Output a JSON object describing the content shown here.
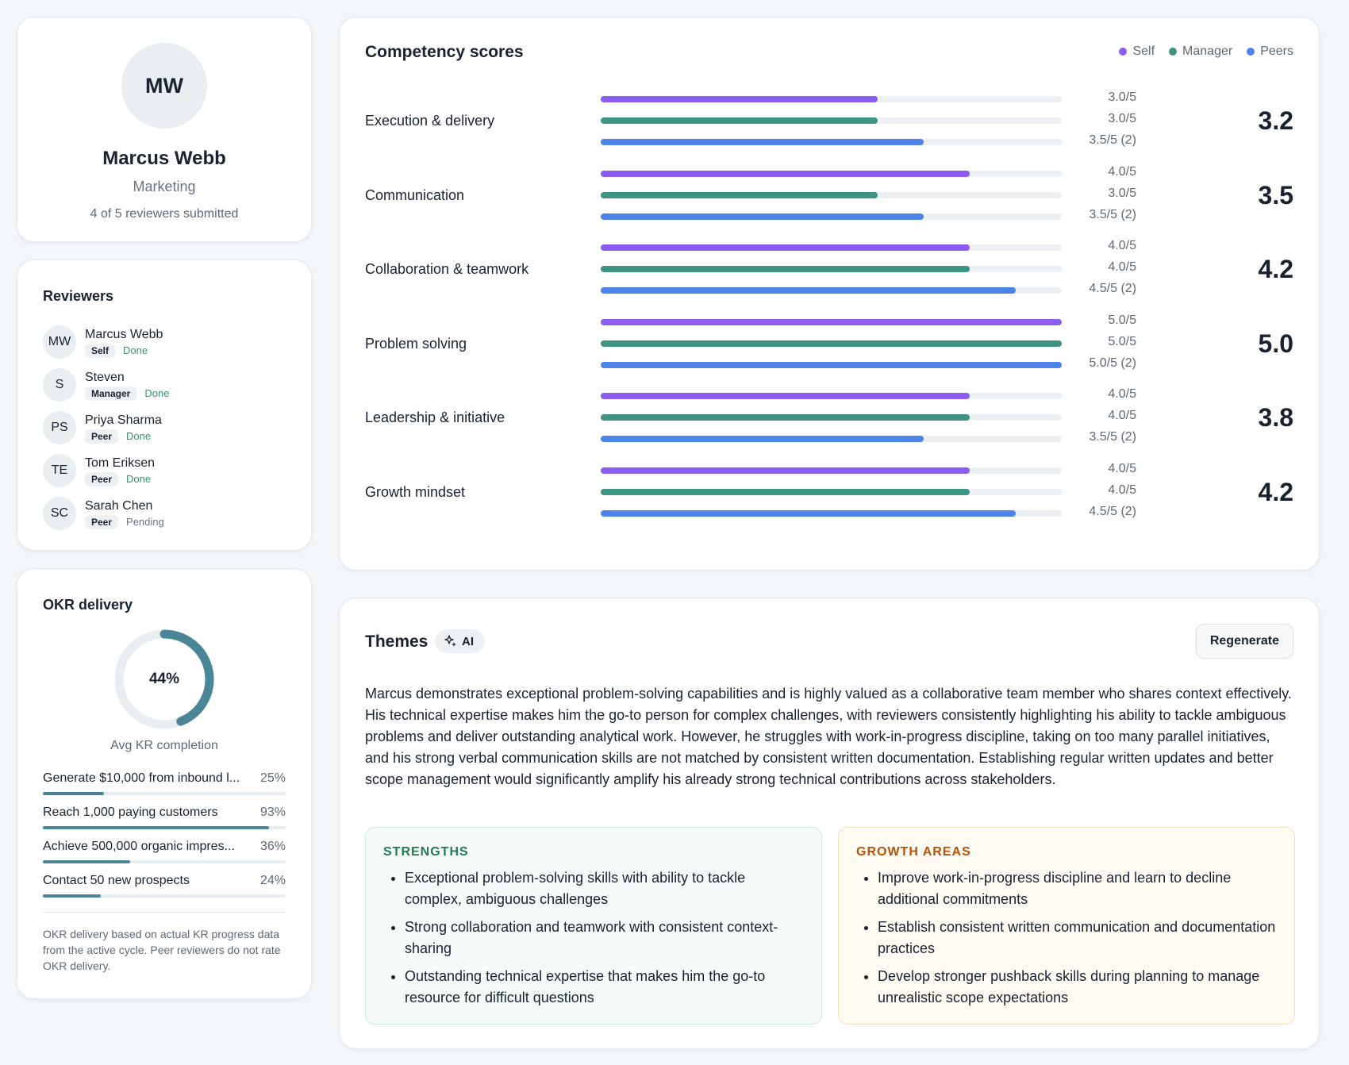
{
  "profile": {
    "initials": "MW",
    "name": "Marcus Webb",
    "department": "Marketing",
    "submitted": "4 of 5 reviewers submitted"
  },
  "reviewers": {
    "title": "Reviewers",
    "items": [
      {
        "initials": "MW",
        "name": "Marcus Webb",
        "role": "Self",
        "status": "Done"
      },
      {
        "initials": "S",
        "name": "Steven",
        "role": "Manager",
        "status": "Done"
      },
      {
        "initials": "PS",
        "name": "Priya Sharma",
        "role": "Peer",
        "status": "Done"
      },
      {
        "initials": "TE",
        "name": "Tom Eriksen",
        "role": "Peer",
        "status": "Done"
      },
      {
        "initials": "SC",
        "name": "Sarah Chen",
        "role": "Peer",
        "status": "Pending"
      }
    ]
  },
  "okr": {
    "title": "OKR delivery",
    "avg_percent": 44,
    "avg_label": "44%",
    "caption": "Avg KR completion",
    "krs": [
      {
        "label": "Generate $10,000 from inbound l...",
        "percent": 25,
        "percent_label": "25%"
      },
      {
        "label": "Reach 1,000 paying customers",
        "percent": 93,
        "percent_label": "93%"
      },
      {
        "label": "Achieve 500,000 organic impres...",
        "percent": 36,
        "percent_label": "36%"
      },
      {
        "label": "Contact 50 new prospects",
        "percent": 24,
        "percent_label": "24%"
      }
    ],
    "note": "OKR delivery based on actual KR progress data from the active cycle. Peer reviewers do not rate OKR delivery.",
    "color": "#4a8698"
  },
  "competency": {
    "title": "Competency scores",
    "legend": {
      "self": "Self",
      "manager": "Manager",
      "peers": "Peers"
    },
    "colors": {
      "self": "#8b5cf0",
      "manager": "#3f9383",
      "peers": "#4d84ea"
    },
    "max": 5,
    "rows": [
      {
        "label": "Execution & delivery",
        "self": 3.0,
        "manager": 3.0,
        "peers": 3.5,
        "self_label": "3.0/5",
        "manager_label": "3.0/5",
        "peers_label": "3.5/5 (2)",
        "total": "3.2"
      },
      {
        "label": "Communication",
        "self": 4.0,
        "manager": 3.0,
        "peers": 3.5,
        "self_label": "4.0/5",
        "manager_label": "3.0/5",
        "peers_label": "3.5/5 (2)",
        "total": "3.5"
      },
      {
        "label": "Collaboration & teamwork",
        "self": 4.0,
        "manager": 4.0,
        "peers": 4.5,
        "self_label": "4.0/5",
        "manager_label": "4.0/5",
        "peers_label": "4.5/5 (2)",
        "total": "4.2"
      },
      {
        "label": "Problem solving",
        "self": 5.0,
        "manager": 5.0,
        "peers": 5.0,
        "self_label": "5.0/5",
        "manager_label": "5.0/5",
        "peers_label": "5.0/5 (2)",
        "total": "5.0"
      },
      {
        "label": "Leadership & initiative",
        "self": 4.0,
        "manager": 4.0,
        "peers": 3.5,
        "self_label": "4.0/5",
        "manager_label": "4.0/5",
        "peers_label": "3.5/5 (2)",
        "total": "3.8"
      },
      {
        "label": "Growth mindset",
        "self": 4.0,
        "manager": 4.0,
        "peers": 4.5,
        "self_label": "4.0/5",
        "manager_label": "4.0/5",
        "peers_label": "4.5/5 (2)",
        "total": "4.2"
      }
    ]
  },
  "themes": {
    "title": "Themes",
    "ai_badge": "AI",
    "ai_icon": "sparkles-icon",
    "regenerate_label": "Regenerate",
    "summary": "Marcus demonstrates exceptional problem-solving capabilities and is highly valued as a collaborative team member who shares context effectively. His technical expertise makes him the go-to person for complex challenges, with reviewers consistently highlighting his ability to tackle ambiguous problems and deliver outstanding analytical work. However, he struggles with work-in-progress discipline, taking on too many parallel initiatives, and his strong verbal communication skills are not matched by consistent written documentation. Establishing regular written updates and better scope management would significantly amplify his already strong technical contributions across stakeholders.",
    "strengths": {
      "title": "STRENGTHS",
      "items": [
        "Exceptional problem-solving skills with ability to tackle complex, ambiguous challenges",
        "Strong collaboration and teamwork with consistent context-sharing",
        "Outstanding technical expertise that makes him the go-to resource for difficult questions"
      ]
    },
    "growth": {
      "title": "GROWTH AREAS",
      "items": [
        "Improve work-in-progress discipline and learn to decline additional commitments",
        "Establish consistent written communication and documentation practices",
        "Develop stronger pushback skills during planning to manage unrealistic scope expectations"
      ]
    }
  }
}
